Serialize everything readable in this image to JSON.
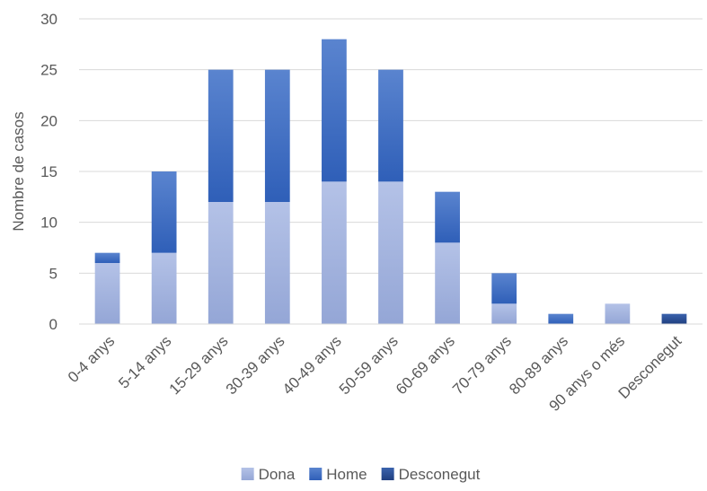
{
  "chart_data": {
    "type": "bar",
    "stacked": true,
    "title": "",
    "xlabel": "",
    "ylabel": "Nombre de casos",
    "ylim": [
      0,
      30
    ],
    "yticks": [
      0,
      5,
      10,
      15,
      20,
      25,
      30
    ],
    "grid": true,
    "legend_position": "bottom",
    "categories": [
      "0-4 anys",
      "5-14 anys",
      "15-29 anys",
      "30-39 anys",
      "40-49 anys",
      "50-59 anys",
      "60-69 anys",
      "70-79 anys",
      "80-89 anys",
      "90 anys o més",
      "Desconegut"
    ],
    "series": [
      {
        "name": "Dona",
        "color": "#a9b8e0",
        "values": [
          6,
          7,
          12,
          12,
          14,
          14,
          8,
          2,
          0,
          2,
          0
        ]
      },
      {
        "name": "Home",
        "color": "#4472c4",
        "values": [
          1,
          8,
          13,
          13,
          14,
          11,
          5,
          3,
          1,
          0,
          0
        ]
      },
      {
        "name": "Desconegut",
        "color": "#2f5597",
        "values": [
          0,
          0,
          0,
          0,
          0,
          0,
          0,
          0,
          0,
          0,
          1
        ]
      }
    ]
  }
}
